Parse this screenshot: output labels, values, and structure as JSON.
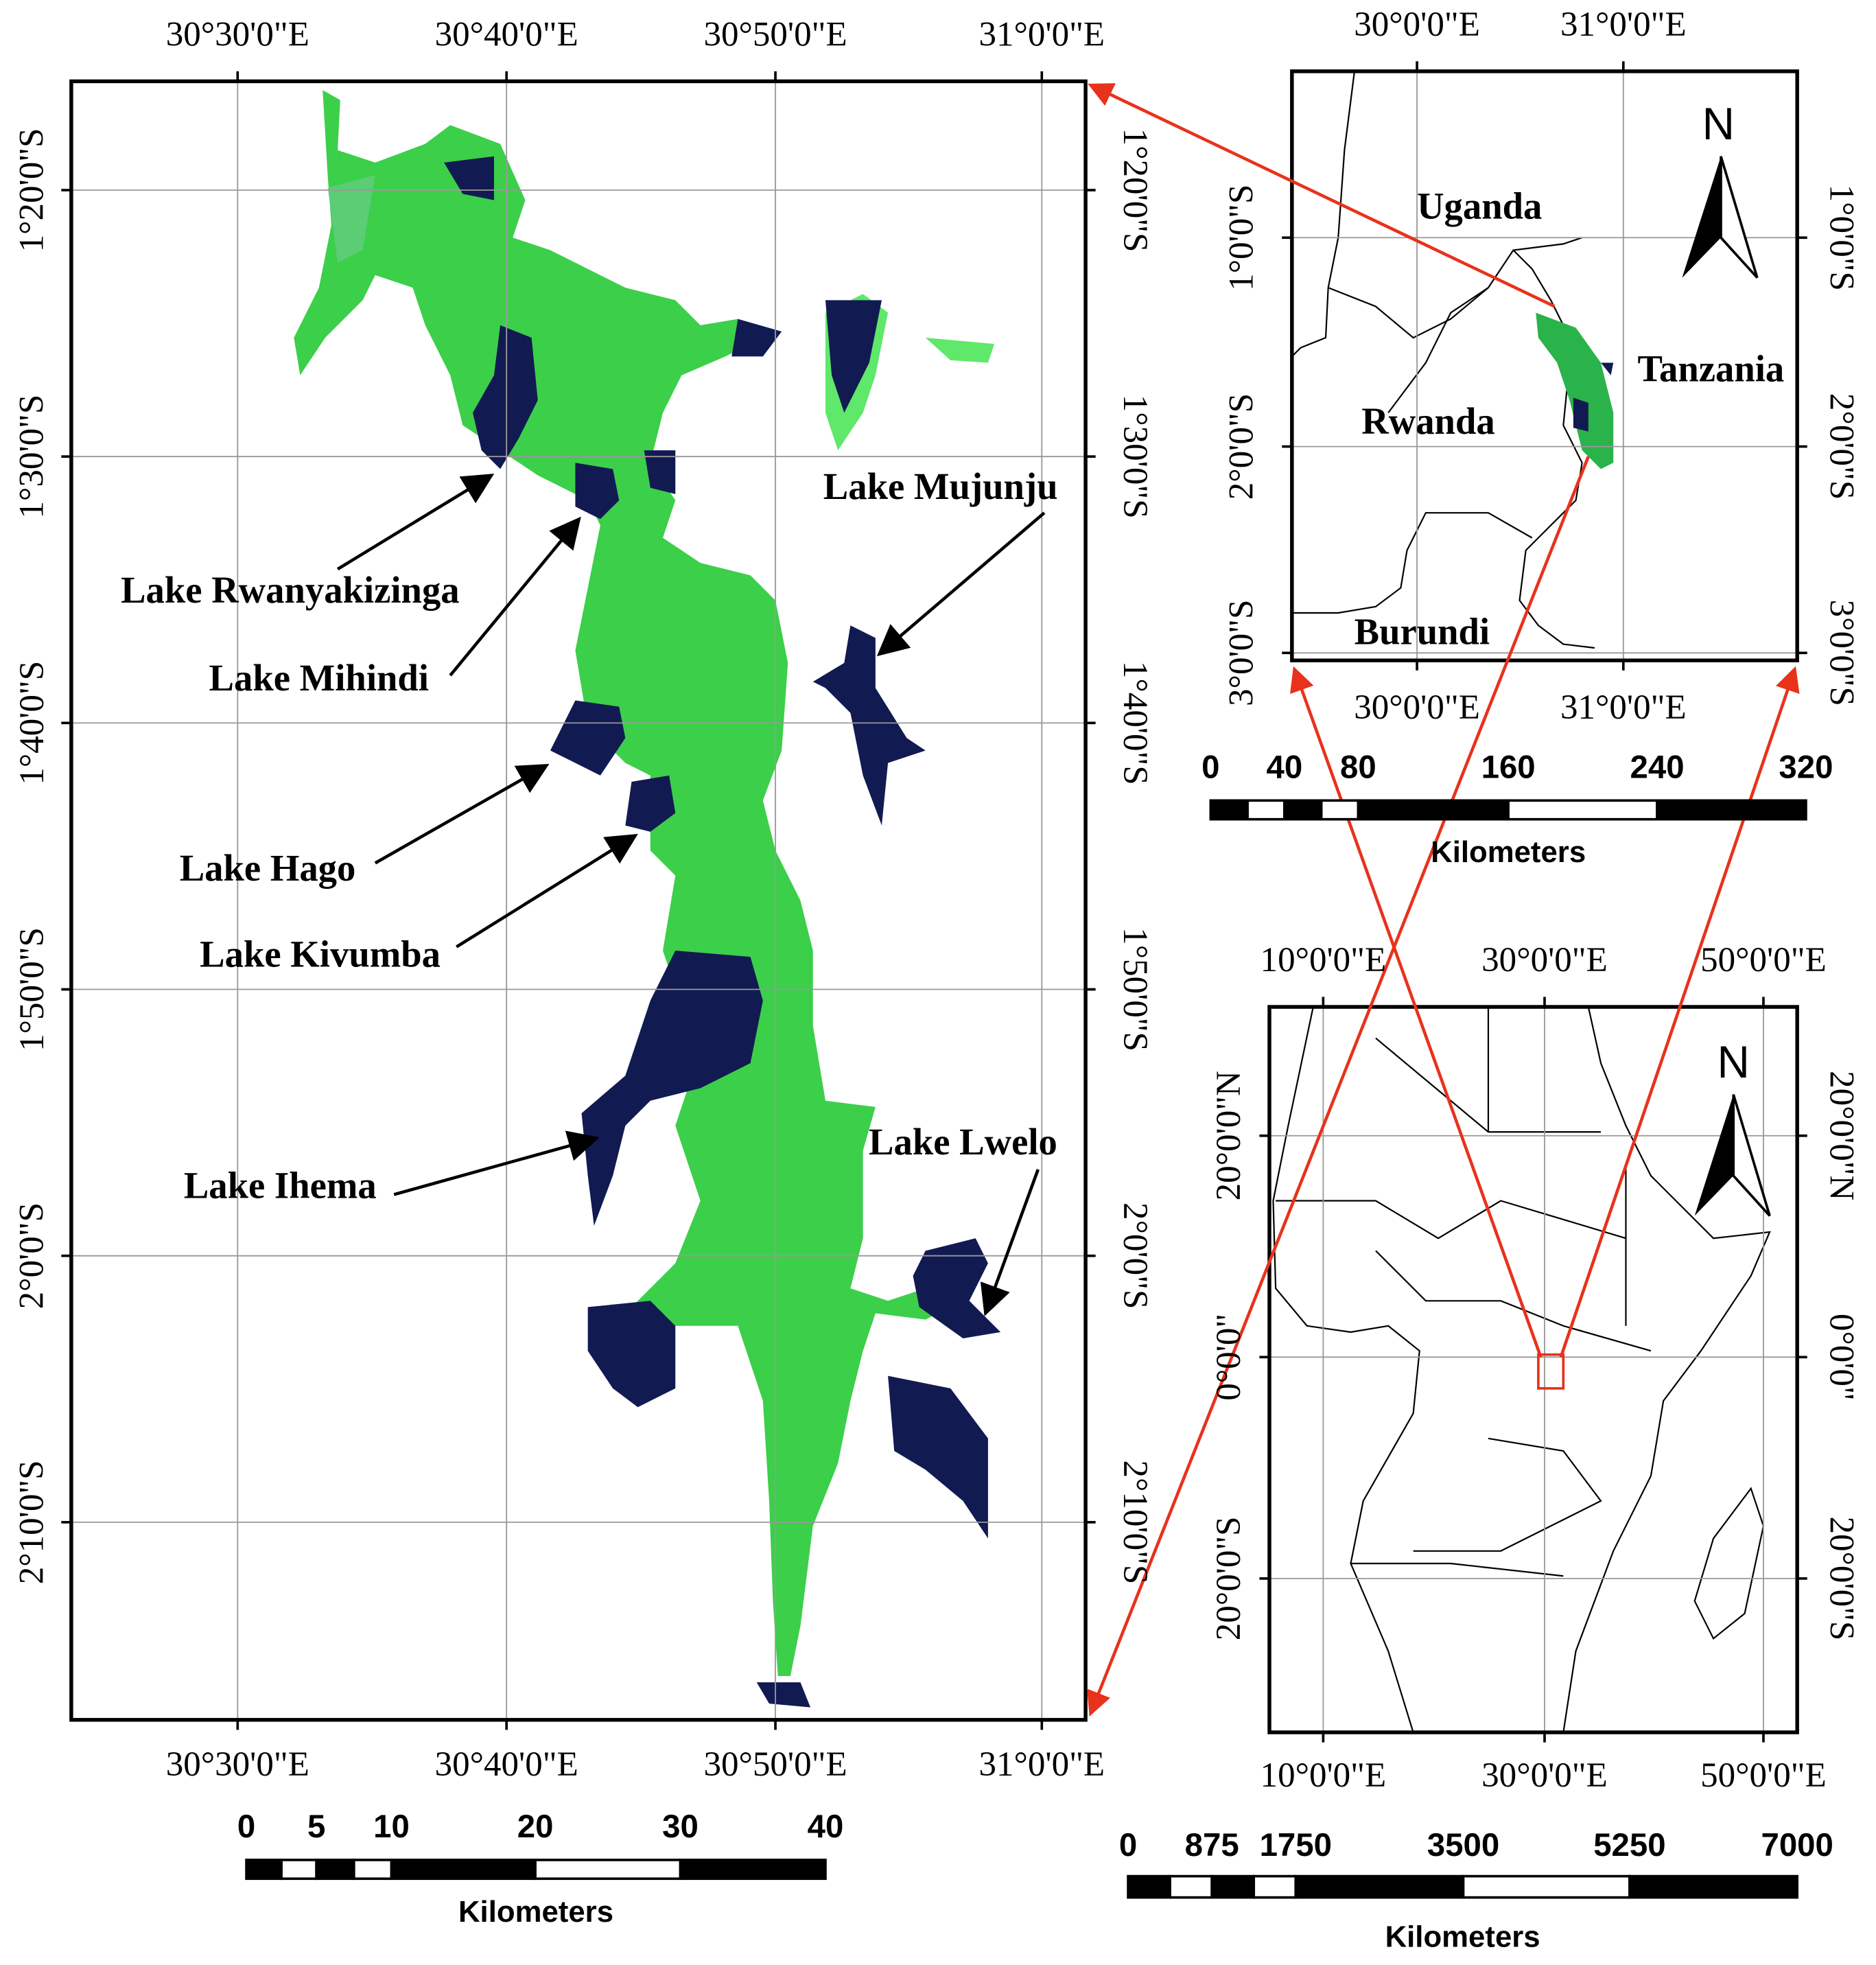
{
  "main_map": {
    "lon_labels": [
      "30°30'0\"E",
      "30°40'0\"E",
      "30°50'0\"E",
      "31°0'0\"E"
    ],
    "lat_labels": [
      "1°20'0\"S",
      "1°30'0\"S",
      "1°40'0\"S",
      "1°50'0\"S",
      "2°0'0\"S",
      "2°10'0\"S"
    ],
    "lakes": [
      "Lake Rwanyakizinga",
      "Lake Mihindi",
      "Lake Mujunju",
      "Lake Hago",
      "Lake Kivumba",
      "Lake Ihema",
      "Lake Lwelo"
    ],
    "scale_bar": {
      "ticks": [
        "0",
        "5",
        "10",
        "20",
        "30",
        "40"
      ],
      "unit": "Kilometers"
    }
  },
  "regional_inset": {
    "lon_labels": [
      "30°0'0\"E",
      "31°0'0\"E"
    ],
    "lat_labels": [
      "1°0'0\"S",
      "2°0'0\"S",
      "3°0'0\"S"
    ],
    "countries": [
      "Uganda",
      "Tanzania",
      "Rwanda",
      "Burundi"
    ],
    "north": "N",
    "scale_bar": {
      "ticks": [
        "0",
        "40",
        "80",
        "160",
        "240",
        "320"
      ],
      "unit": "Kilometers"
    }
  },
  "africa_inset": {
    "lon_labels": [
      "10°0'0\"E",
      "30°0'0\"E",
      "50°0'0\"E"
    ],
    "lat_labels": [
      "20°0'0\"N",
      "0°0'0\"",
      "20°0'0\"S"
    ],
    "north": "N",
    "scale_bar": {
      "ticks": [
        "0",
        "875",
        "1750",
        "3500",
        "5250",
        "7000"
      ],
      "unit": "Kilometers"
    }
  }
}
